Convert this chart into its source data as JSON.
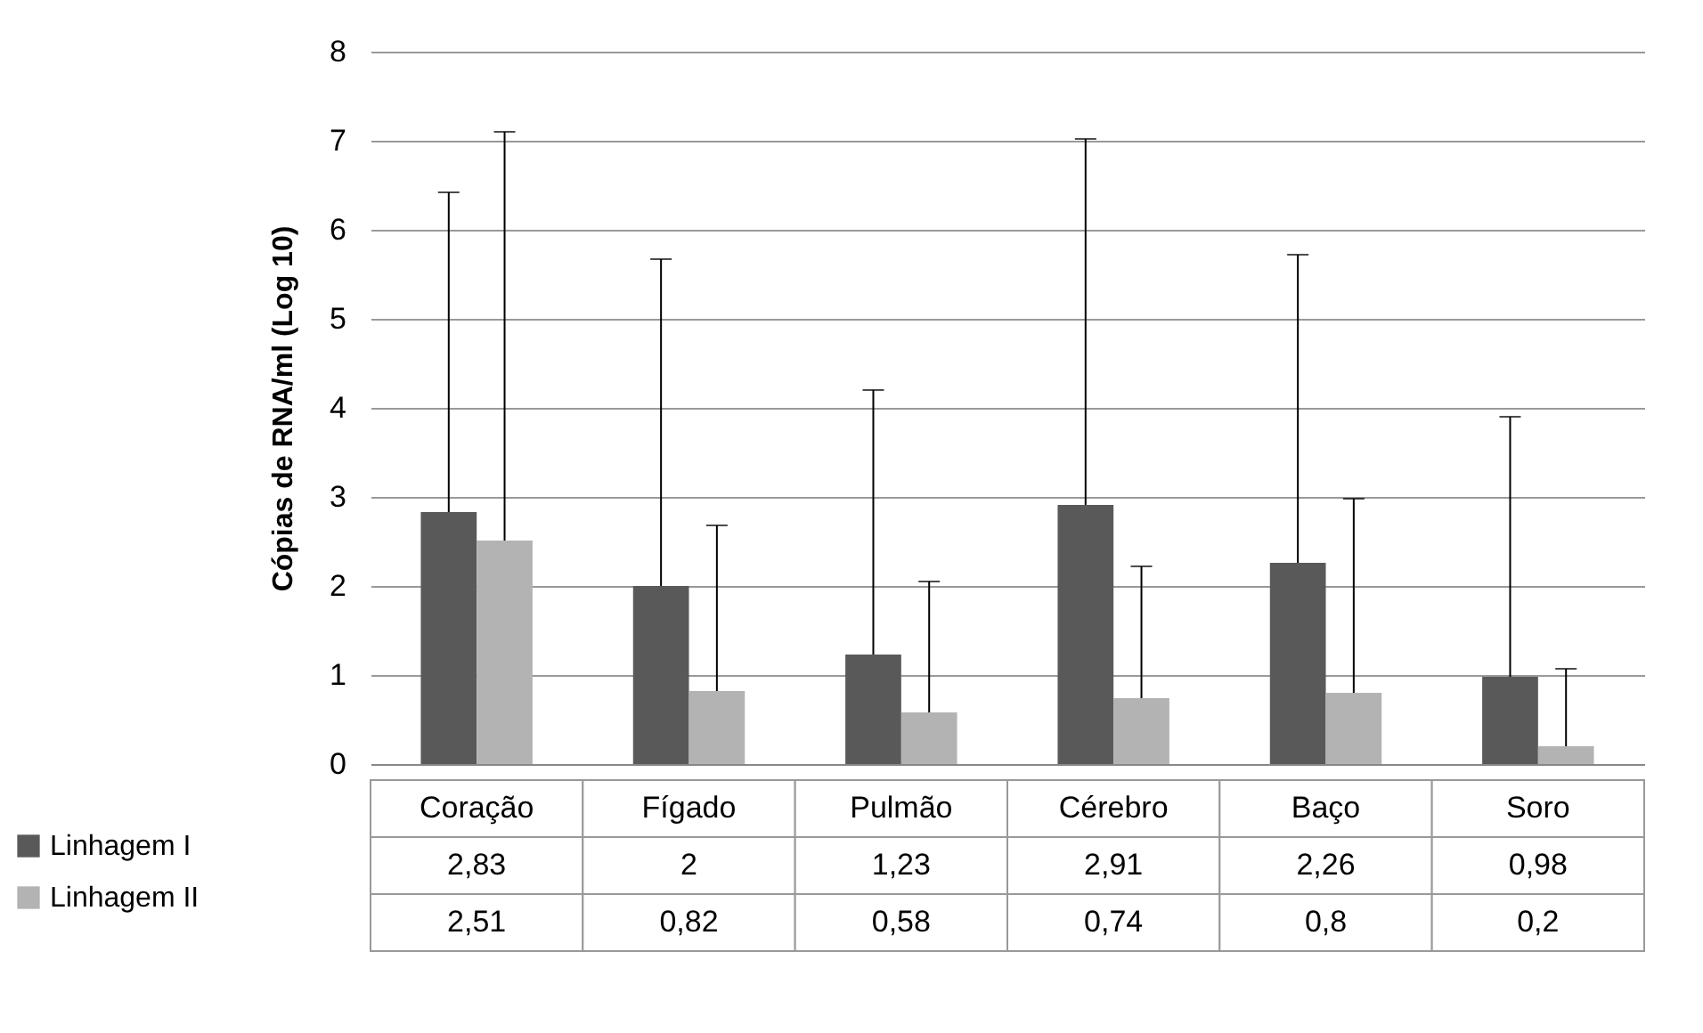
{
  "chart_data": {
    "type": "bar",
    "ylabel": "Cópias de RNA/ml (Log 10)",
    "categories": [
      "Coração",
      "Fígado",
      "Pulmão",
      "Cérebro",
      "Baço",
      "Soro"
    ],
    "series": [
      {
        "name": "Linhagem I",
        "color": "#595959",
        "values": [
          2.83,
          2,
          1.23,
          2.91,
          2.26,
          0.98
        ],
        "value_labels": [
          "2,83",
          "2",
          "1,23",
          "2,91",
          "2,26",
          "0,98"
        ],
        "errors": [
          [
            2.83,
            6.42
          ],
          [
            2,
            5.67
          ],
          [
            1.23,
            4.2
          ],
          [
            2.91,
            7.02
          ],
          [
            2.26,
            5.72
          ],
          [
            0.98,
            3.9
          ]
        ]
      },
      {
        "name": "Linhagem II",
        "color": "#b3b3b3",
        "values": [
          2.51,
          0.82,
          0.58,
          0.74,
          0.8,
          0.2
        ],
        "value_labels": [
          "2,51",
          "0,82",
          "0,58",
          "0,74",
          "0,8",
          "0,2"
        ],
        "errors": [
          [
            2.51,
            7.1
          ],
          [
            0.82,
            2.68
          ],
          [
            0.58,
            2.05
          ],
          [
            0.74,
            2.22
          ],
          [
            0.8,
            2.98
          ],
          [
            0.2,
            1.07
          ]
        ]
      }
    ],
    "ylim": [
      0,
      8
    ],
    "yticks": [
      0,
      1,
      2,
      3,
      4,
      5,
      6,
      7,
      8
    ],
    "grid": "y",
    "legend": "bottom"
  }
}
